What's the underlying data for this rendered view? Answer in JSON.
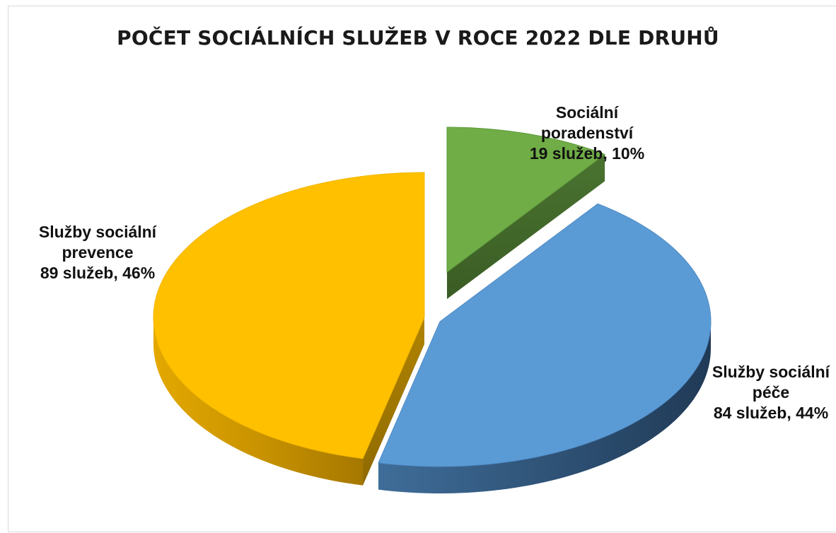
{
  "chart_data": {
    "type": "pie",
    "title": "POČET SOCIÁLNÍCH SLUŽEB V ROCE 2022 DLE DRUHŮ",
    "categories": [
      "Sociální poradenství",
      "Služby sociální péče",
      "Služby sociální prevence"
    ],
    "values": [
      19,
      84,
      89
    ],
    "percentages": [
      10,
      44,
      46
    ],
    "colors": [
      "#70ad47",
      "#5b9bd5",
      "#ffc000"
    ],
    "exploded": true,
    "style": "3d",
    "data_labels": [
      {
        "lines": [
          "Sociální",
          "poradenství",
          "19 služeb, 10%"
        ]
      },
      {
        "lines": [
          "Služby sociální",
          "péče",
          "84 služeb, 44%"
        ]
      },
      {
        "lines": [
          "Služby sociální",
          "prevence",
          "89 služeb, 46%"
        ]
      }
    ]
  }
}
